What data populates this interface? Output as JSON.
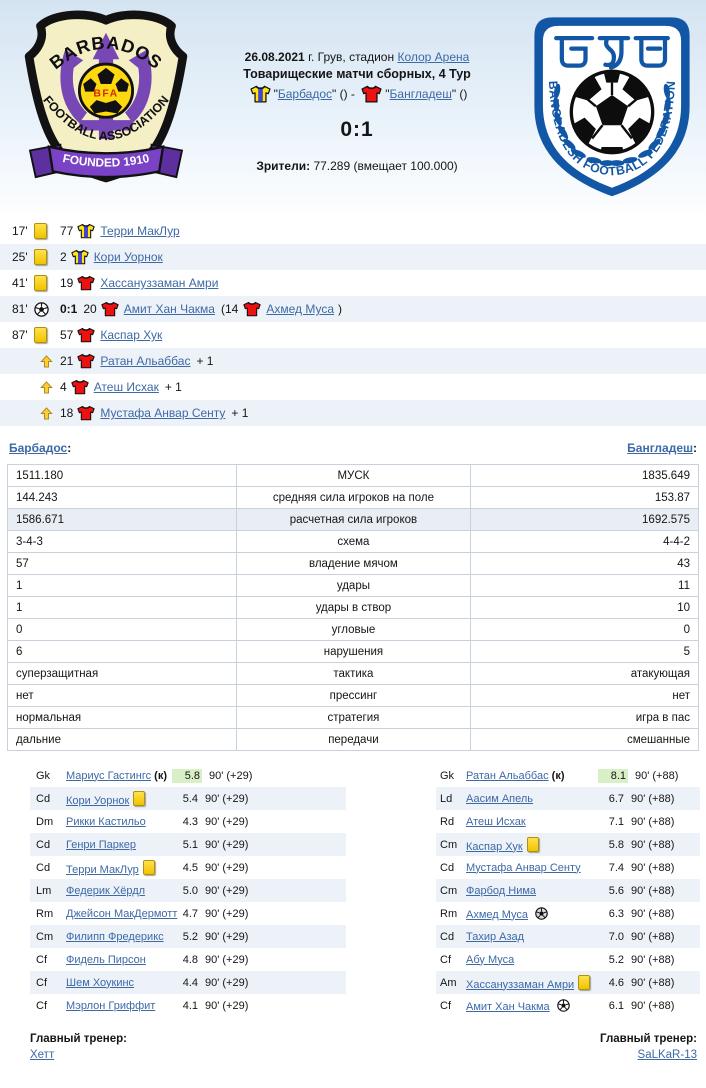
{
  "theme": {
    "link_color": "#3d69a6",
    "alt_row": "#edf2f9",
    "stat_highlight": "#e9eef5",
    "best_rating_bg": "#d9efc5",
    "card_yellow": "#f2c200",
    "home_shirt": "#ffe312",
    "home_stripe": "#4444cc",
    "away_shirt": "#ee1111"
  },
  "header": {
    "date": "26.08.2021",
    "venue": "г. Грув, стадион",
    "stadium": "Колор Арена",
    "tournament": "Товарищеские матчи сборных, 4 Тур",
    "q_open": "\"",
    "home_team": "Барбадос",
    "q_close_home": "\" () -",
    "away_team": "Бангладеш",
    "q_close_away": "\" ()",
    "score": "0:1",
    "attendance_label": "Зрители:",
    "attendance": "77.289 (вмещает 100.000)"
  },
  "logos": {
    "home_name": "Barbados Football Association",
    "home_text_top": "BARBADOS",
    "home_text_bottom": "FOOTBALL ASSOCIATION",
    "home_ribbon": "FOUNDED 1910",
    "home_ball_letters": "BFA",
    "away_name": "Bangladesh Football Federation",
    "away_text": "BANGLADESH FOOTBALL FEDERATION"
  },
  "events": [
    {
      "time": "17'",
      "icon": "yellow-card",
      "number": "77",
      "shirt": "home",
      "player": "Терри МакЛур",
      "alt": false
    },
    {
      "time": "25'",
      "icon": "yellow-card",
      "number": "2",
      "shirt": "home",
      "player": "Кори Уорнок",
      "alt": true
    },
    {
      "time": "41'",
      "icon": "yellow-card",
      "number": "19",
      "shirt": "away",
      "player": "Хассануззаман Амри",
      "alt": false
    },
    {
      "time": "81'",
      "icon": "goal",
      "score": "0:1",
      "number": "20",
      "shirt": "away",
      "player": "Амит Хан Чакма",
      "assist_pre": "(14",
      "assist_shirt": "away",
      "assist_player": "Ахмед Муса",
      "assist_post": ")",
      "alt": true
    },
    {
      "time": "87'",
      "icon": "yellow-card",
      "number": "57",
      "shirt": "away",
      "player": "Каспар Хук",
      "alt": false
    },
    {
      "icon": "sub-in",
      "number": "21",
      "shirt": "away",
      "player": "Ратан Альаббас",
      "suffix": "+ 1",
      "alt": true
    },
    {
      "icon": "sub-in",
      "number": "4",
      "shirt": "away",
      "player": "Атеш Исхак",
      "suffix": "+ 1",
      "alt": false
    },
    {
      "icon": "sub-in",
      "number": "18",
      "shirt": "away",
      "player": "Мустафа Анвар Сенту",
      "suffix": "+ 1",
      "alt": true
    }
  ],
  "stats": {
    "home_label": "Барбадос",
    "away_label": "Бангладеш",
    "colon": ":",
    "rows": [
      {
        "home": "1511.180",
        "label": "МУСК",
        "away": "1835.649"
      },
      {
        "home": "144.243",
        "label": "средняя сила игроков на поле",
        "away": "153.87"
      },
      {
        "home": "1586.671",
        "label": "расчетная сила игроков",
        "away": "1692.575",
        "highlight": true
      },
      {
        "home": "3-4-3",
        "label": "схема",
        "away": "4-4-2"
      },
      {
        "home": "57",
        "label": "владение мячом",
        "away": "43"
      },
      {
        "home": "1",
        "label": "удары",
        "away": "11"
      },
      {
        "home": "1",
        "label": "удары в створ",
        "away": "10"
      },
      {
        "home": "0",
        "label": "угловые",
        "away": "0"
      },
      {
        "home": "6",
        "label": "нарушения",
        "away": "5"
      },
      {
        "home": "суперзащитная",
        "label": "тактика",
        "away": "атакующая"
      },
      {
        "home": "нет",
        "label": "прессинг",
        "away": "нет"
      },
      {
        "home": "нормальная",
        "label": "стратегия",
        "away": "игра в пас"
      },
      {
        "home": "дальние",
        "label": "передачи",
        "away": "смешанные"
      }
    ]
  },
  "lineups": {
    "home": {
      "coach_label": "Главный тренер:",
      "coach": "Хетт",
      "players": [
        {
          "pos": "Gk",
          "name": "Мариус Гастингс",
          "captain": "(к)",
          "rating": "5.8",
          "minutes": "90' (+29)",
          "best": true
        },
        {
          "pos": "Cd",
          "name": "Кори Уорнок",
          "card": "yellow",
          "rating": "5.4",
          "minutes": "90' (+29)"
        },
        {
          "pos": "Dm",
          "name": "Рикки Кастильо",
          "rating": "4.3",
          "minutes": "90' (+29)"
        },
        {
          "pos": "Cd",
          "name": "Генри Паркер",
          "rating": "5.1",
          "minutes": "90' (+29)"
        },
        {
          "pos": "Cd",
          "name": "Терри МакЛур",
          "card": "yellow",
          "rating": "4.5",
          "minutes": "90' (+29)"
        },
        {
          "pos": "Lm",
          "name": "Федерик Хёрдл",
          "rating": "5.0",
          "minutes": "90' (+29)"
        },
        {
          "pos": "Rm",
          "name": "Джейсон МакДермотт",
          "rating": "4.7",
          "minutes": "90' (+29)"
        },
        {
          "pos": "Cm",
          "name": "Филипп Фредерикс",
          "rating": "5.2",
          "minutes": "90' (+29)"
        },
        {
          "pos": "Cf",
          "name": "Фидель Пирсон",
          "rating": "4.8",
          "minutes": "90' (+29)"
        },
        {
          "pos": "Cf",
          "name": "Шем Хоукинс",
          "rating": "4.4",
          "minutes": "90' (+29)"
        },
        {
          "pos": "Cf",
          "name": "Мэрлон Гриффит",
          "rating": "4.1",
          "minutes": "90' (+29)"
        }
      ]
    },
    "away": {
      "coach_label": "Главный тренер:",
      "coach": "SaLKaR-13",
      "players": [
        {
          "pos": "Gk",
          "name": "Ратан Альаббас",
          "captain": "(к)",
          "rating": "8.1",
          "minutes": "90' (+88)",
          "best": true
        },
        {
          "pos": "Ld",
          "name": "Аасим Апель",
          "rating": "6.7",
          "minutes": "90' (+88)"
        },
        {
          "pos": "Rd",
          "name": "Атеш Исхак",
          "rating": "7.1",
          "minutes": "90' (+88)"
        },
        {
          "pos": "Cm",
          "name": "Каспар Хук",
          "card": "yellow",
          "rating": "5.8",
          "minutes": "90' (+88)"
        },
        {
          "pos": "Cd",
          "name": "Мустафа Анвар Сенту",
          "rating": "7.4",
          "minutes": "90' (+88)"
        },
        {
          "pos": "Cm",
          "name": "Фарбод Нима",
          "rating": "5.6",
          "minutes": "90' (+88)"
        },
        {
          "pos": "Rm",
          "name": "Ахмед Муса",
          "ball": "assist",
          "rating": "6.3",
          "minutes": "90' (+88)"
        },
        {
          "pos": "Cd",
          "name": "Тахир Азад",
          "rating": "7.0",
          "minutes": "90' (+88)"
        },
        {
          "pos": "Cf",
          "name": "Абу Муса",
          "rating": "5.2",
          "minutes": "90' (+88)"
        },
        {
          "pos": "Am",
          "name": "Хассануззаман Амри",
          "card": "yellow",
          "rating": "4.6",
          "minutes": "90' (+88)"
        },
        {
          "pos": "Cf",
          "name": "Амит Хан Чакма",
          "ball": "goal",
          "rating": "6.1",
          "minutes": "90' (+88)"
        }
      ]
    }
  }
}
